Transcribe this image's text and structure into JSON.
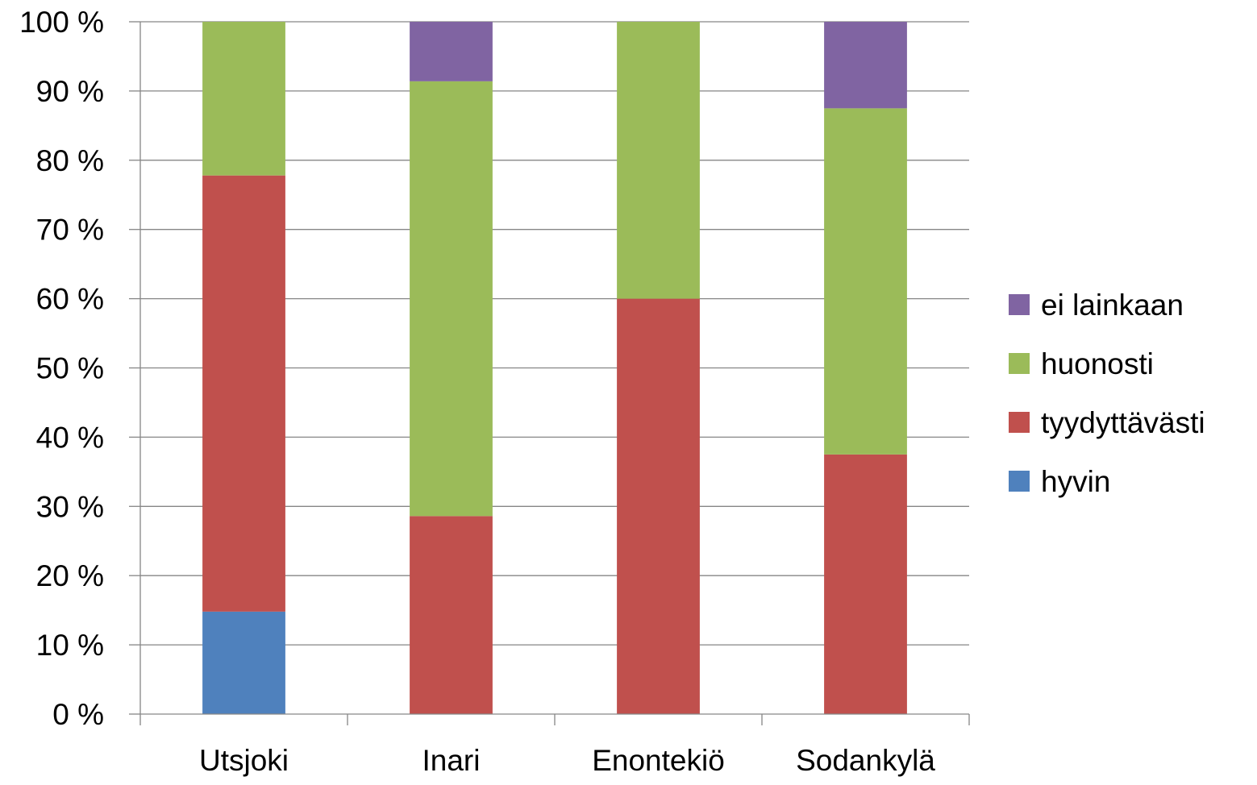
{
  "chart_data": {
    "type": "bar",
    "stacked": true,
    "percent_stacked": true,
    "categories": [
      "Utsjoki",
      "Inari",
      "Enontekiö",
      "Sodankylä"
    ],
    "series": [
      {
        "name": "hyvin",
        "color": "#4F81BD",
        "values": [
          14.8,
          0,
          0,
          0
        ]
      },
      {
        "name": "tyydyttävästi",
        "color": "#C0504D",
        "values": [
          63.0,
          28.6,
          60.0,
          37.5
        ]
      },
      {
        "name": "huonosti",
        "color": "#9BBB59",
        "values": [
          22.2,
          62.8,
          40.0,
          50.0
        ]
      },
      {
        "name": "ei lainkaan",
        "color": "#8064A2",
        "values": [
          0,
          8.6,
          0,
          12.5
        ]
      }
    ],
    "y_ticks": [
      "0 %",
      "10 %",
      "20 %",
      "30 %",
      "40 %",
      "50 %",
      "60 %",
      "70 %",
      "80 %",
      "90 %",
      "100 %"
    ],
    "ylim": [
      0,
      100
    ],
    "grid": true,
    "legend_position": "right",
    "legend_order": [
      "ei lainkaan",
      "huonosti",
      "tyydyttävästi",
      "hyvin"
    ],
    "gridline_color": "#868686"
  }
}
